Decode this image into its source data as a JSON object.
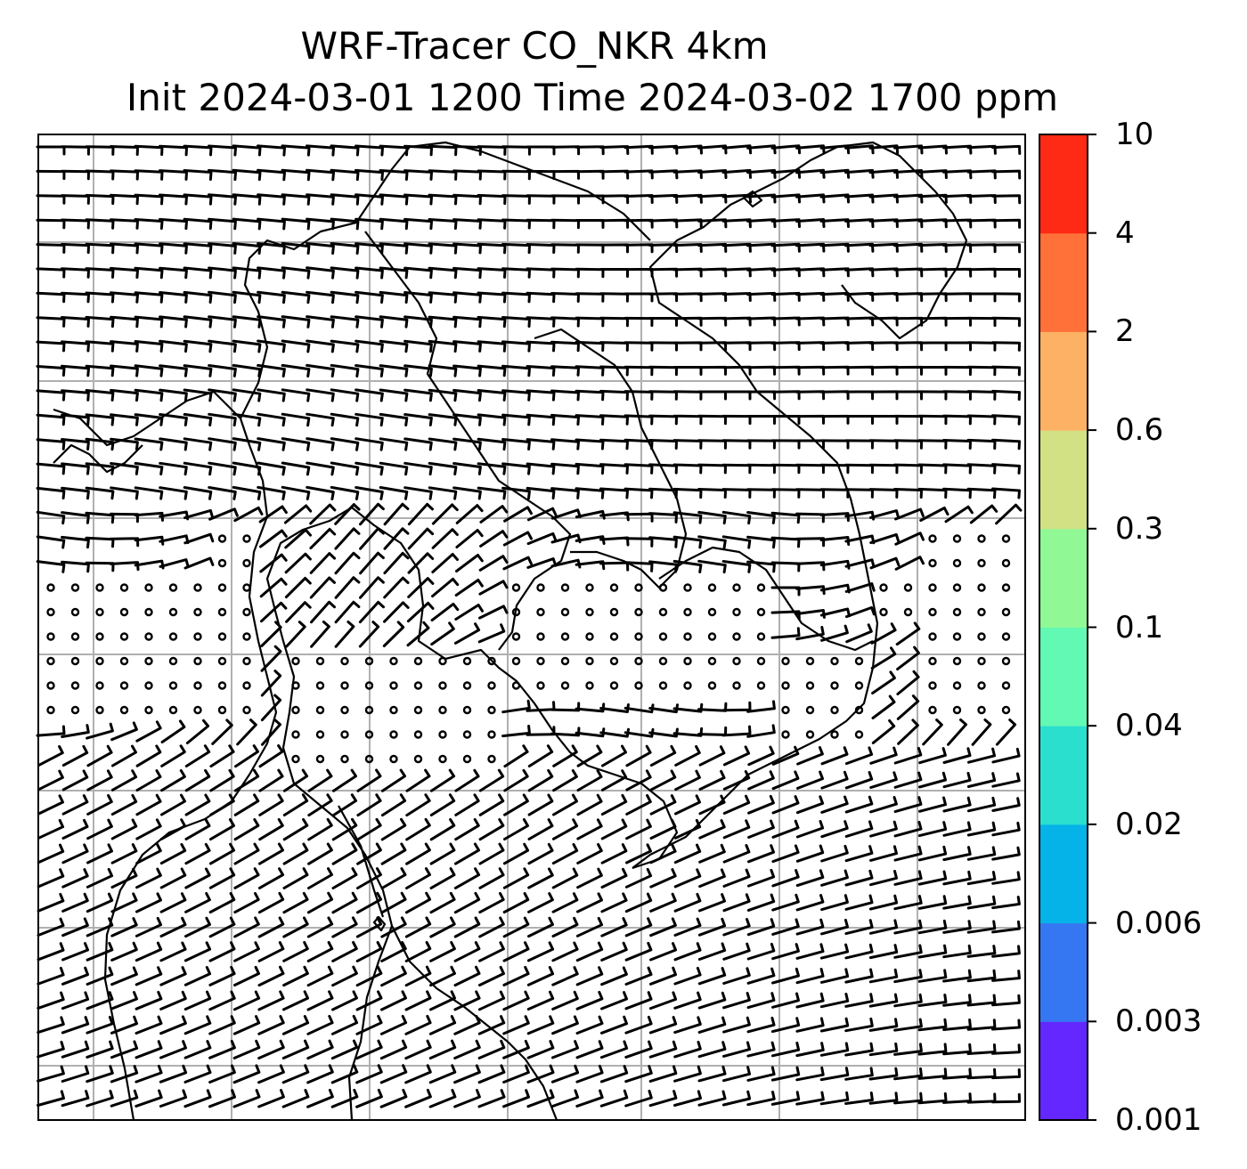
{
  "title": {
    "line1": "WRF-Tracer CO_NKR 4km",
    "line2": "Init 2024-03-01 1200 Time 2024-03-02 1700 ppm"
  },
  "colorbar": {
    "levels": [
      "0.001",
      "0.003",
      "0.006",
      "0.02",
      "0.04",
      "0.1",
      "0.3",
      "0.6",
      "2",
      "4",
      "10"
    ],
    "colors": [
      "#6427ff",
      "#3577f2",
      "#05b3e9",
      "#2bdfcf",
      "#62f9b5",
      "#90f995",
      "#d2e184",
      "#fdb164",
      "#ff7138",
      "#ff2a15"
    ]
  },
  "map": {
    "gridline_color": "#b0b0b0",
    "coastline_color": "#000000",
    "wind_barb_color": "#000000",
    "calm_symbol": "circle"
  }
}
